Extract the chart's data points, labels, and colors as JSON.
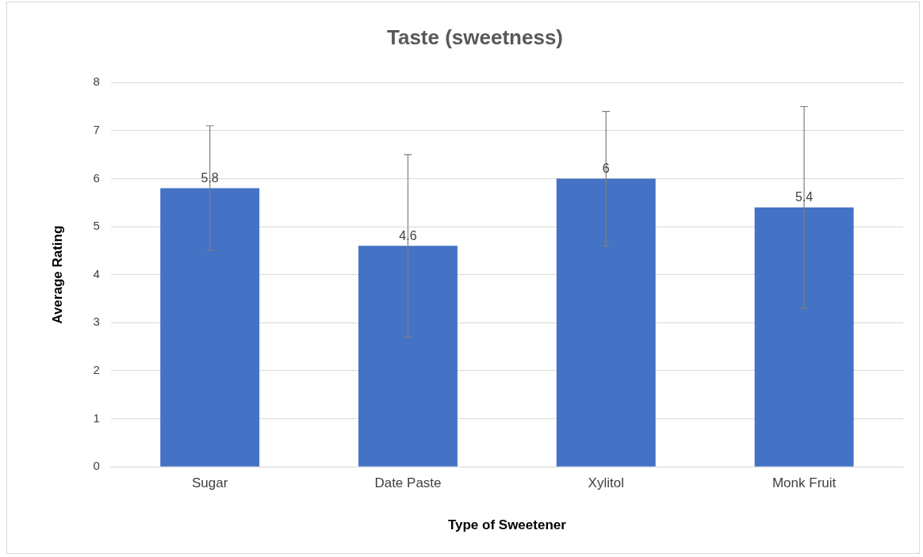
{
  "chart_data": {
    "type": "bar",
    "title": "Taste (sweetness)",
    "xlabel": "Type of Sweetener",
    "ylabel": "Average Rating",
    "categories": [
      "Sugar",
      "Date Paste",
      "Xylitol",
      "Monk Fruit"
    ],
    "values": [
      5.8,
      4.6,
      6,
      5.4
    ],
    "errors": [
      1.3,
      1.9,
      1.4,
      2.1
    ],
    "color": "#4472c4",
    "ylim": [
      0,
      8
    ],
    "yticks": [
      0,
      1,
      2,
      3,
      4,
      5,
      6,
      7,
      8
    ],
    "grid": "y",
    "data_labels": true,
    "legend": false
  }
}
